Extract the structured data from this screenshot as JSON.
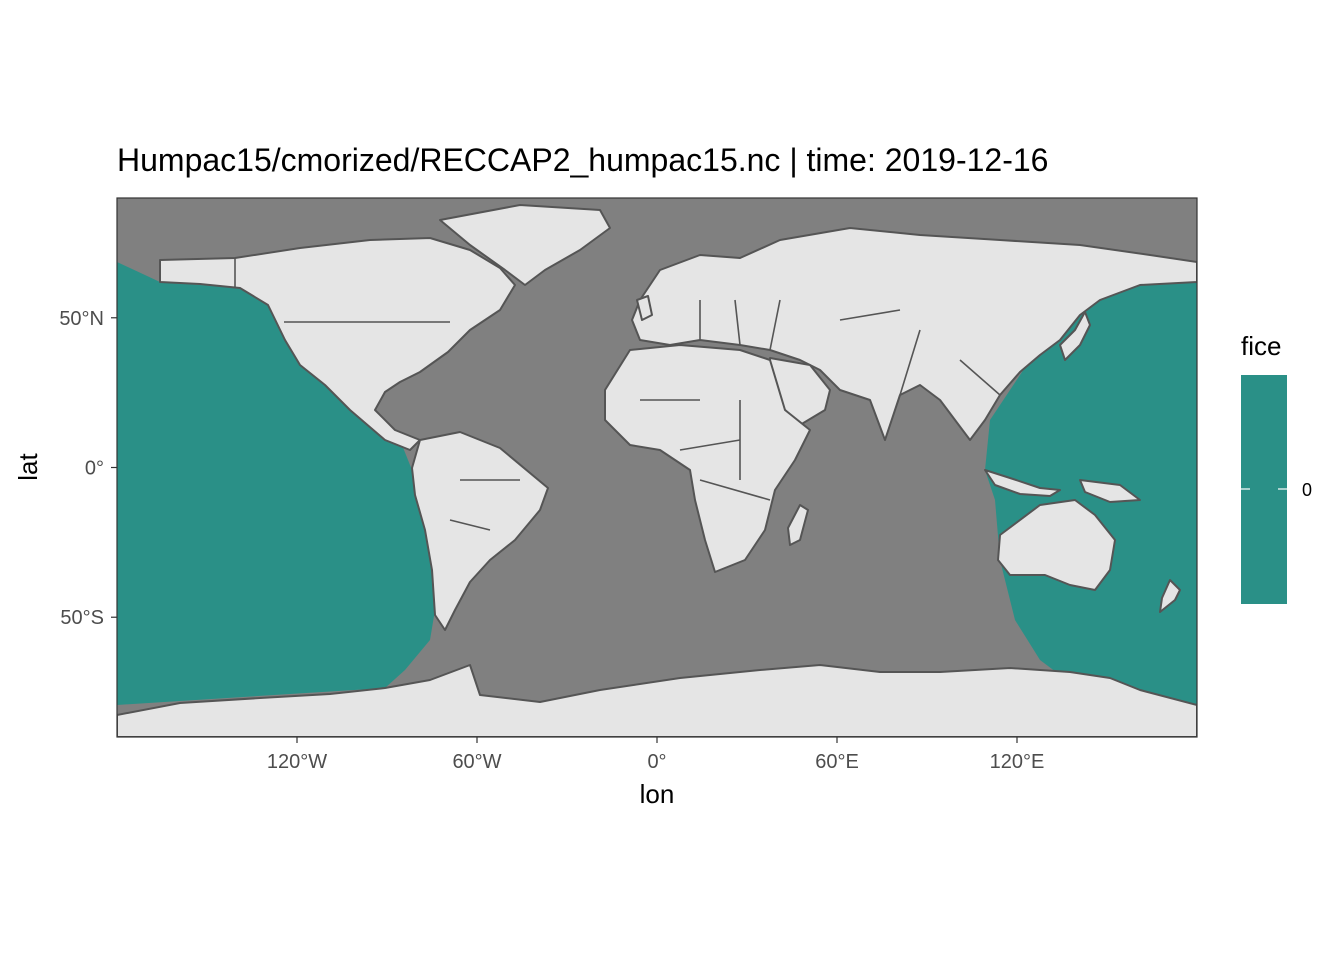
{
  "title": "Humpac15/cmorized/RECCAP2_humpac15.nc | time:  2019-12-16",
  "colors": {
    "ocean_na": "#808080",
    "fice_fill": "#2a9087",
    "land": "#e5e5e5",
    "border": "#555555"
  },
  "axes": {
    "x_title": "lon",
    "y_title": "lat",
    "x_ticks": [
      "120°W",
      "60°W",
      "0°",
      "60°E",
      "120°E"
    ],
    "y_ticks": [
      "50°N",
      "0°",
      "50°S"
    ]
  },
  "legend": {
    "title": "fice",
    "labels": [
      "0"
    ]
  },
  "map_data": {
    "type": "raster-map",
    "variable": "fice",
    "lon_range": [
      -180,
      180
    ],
    "lat_range": [
      -90,
      90
    ],
    "x_tick_values": [
      -120,
      -60,
      0,
      60,
      120
    ],
    "y_tick_values": [
      50,
      0,
      -50
    ],
    "filled_value": 0,
    "filled_regions": [
      "Pacific Ocean"
    ],
    "legend_placement": "right"
  }
}
